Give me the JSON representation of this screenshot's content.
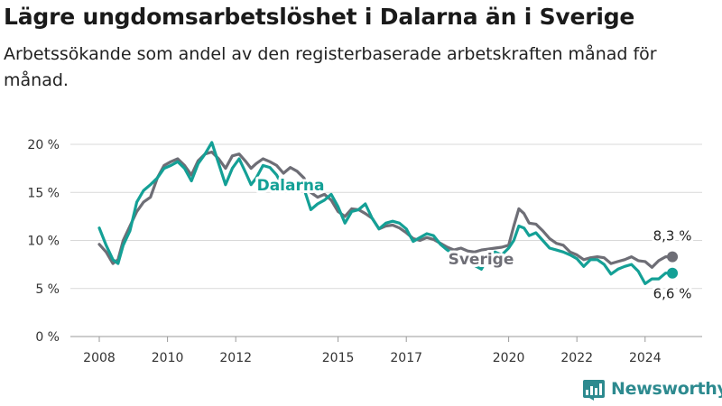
{
  "title": "Lägre ungdomsarbetslöshet i Dalarna än i Sverige",
  "subtitle": "Arbetssökande som andel av den registerbaserade arbetskraften månad för månad.",
  "brand": "Newsworthy",
  "colors": {
    "sverige": "#6e6e76",
    "dalarna": "#14a096",
    "grid": "#d9d9d9",
    "brand": "#2d8a8f"
  },
  "chart_data": {
    "type": "line",
    "title": "Lägre ungdomsarbetslöshet i Dalarna än i Sverige",
    "subtitle": "Arbetssökande som andel av den registerbaserade arbetskraften månad för månad.",
    "xlabel": "",
    "ylabel": "",
    "ylim": [
      0,
      20
    ],
    "xlim": [
      2008.0,
      2025.1
    ],
    "y_ticks": [
      0,
      5,
      10,
      15,
      20
    ],
    "y_tick_labels": [
      "0 %",
      "5 %",
      "10 %",
      "15 %",
      "20 %"
    ],
    "x_ticks": [
      2008,
      2010,
      2012,
      2015,
      2017,
      2020,
      2022,
      2024
    ],
    "x_tick_labels": [
      "2008",
      "2010",
      "2012",
      "2015",
      "2017",
      "2020",
      "2022",
      "2024"
    ],
    "grid": true,
    "legend": "inline labels",
    "series": [
      {
        "name": "Sverige",
        "end_label": "8,3 %",
        "points": [
          [
            2008.0,
            9.6
          ],
          [
            2008.2,
            8.8
          ],
          [
            2008.4,
            7.6
          ],
          [
            2008.55,
            8.0
          ],
          [
            2008.7,
            10.0
          ],
          [
            2008.9,
            11.5
          ],
          [
            2009.1,
            13.0
          ],
          [
            2009.3,
            14.0
          ],
          [
            2009.5,
            14.5
          ],
          [
            2009.7,
            16.5
          ],
          [
            2009.9,
            17.8
          ],
          [
            2010.1,
            18.2
          ],
          [
            2010.3,
            18.5
          ],
          [
            2010.5,
            17.8
          ],
          [
            2010.7,
            16.8
          ],
          [
            2010.9,
            18.3
          ],
          [
            2011.1,
            19.0
          ],
          [
            2011.3,
            19.2
          ],
          [
            2011.5,
            18.5
          ],
          [
            2011.7,
            17.5
          ],
          [
            2011.9,
            18.8
          ],
          [
            2012.1,
            19.0
          ],
          [
            2012.3,
            18.2
          ],
          [
            2012.45,
            17.5
          ],
          [
            2012.6,
            18.0
          ],
          [
            2012.8,
            18.5
          ],
          [
            2013.0,
            18.2
          ],
          [
            2013.2,
            17.8
          ],
          [
            2013.4,
            17.0
          ],
          [
            2013.6,
            17.6
          ],
          [
            2013.8,
            17.2
          ],
          [
            2014.0,
            16.5
          ],
          [
            2014.2,
            15.0
          ],
          [
            2014.4,
            14.5
          ],
          [
            2014.6,
            14.8
          ],
          [
            2014.8,
            14.2
          ],
          [
            2015.0,
            13.0
          ],
          [
            2015.2,
            12.5
          ],
          [
            2015.4,
            13.3
          ],
          [
            2015.6,
            13.2
          ],
          [
            2015.8,
            12.8
          ],
          [
            2016.0,
            12.3
          ],
          [
            2016.2,
            11.2
          ],
          [
            2016.4,
            11.5
          ],
          [
            2016.6,
            11.6
          ],
          [
            2016.8,
            11.3
          ],
          [
            2017.0,
            10.8
          ],
          [
            2017.2,
            10.2
          ],
          [
            2017.4,
            10.0
          ],
          [
            2017.6,
            10.3
          ],
          [
            2017.8,
            10.1
          ],
          [
            2018.0,
            9.7
          ],
          [
            2018.2,
            9.3
          ],
          [
            2018.4,
            9.0
          ],
          [
            2018.6,
            9.2
          ],
          [
            2018.8,
            8.9
          ],
          [
            2019.0,
            8.8
          ],
          [
            2019.2,
            9.0
          ],
          [
            2019.4,
            9.1
          ],
          [
            2019.6,
            9.2
          ],
          [
            2019.8,
            9.3
          ],
          [
            2020.0,
            9.5
          ],
          [
            2020.15,
            11.5
          ],
          [
            2020.3,
            13.3
          ],
          [
            2020.45,
            12.8
          ],
          [
            2020.6,
            11.8
          ],
          [
            2020.8,
            11.7
          ],
          [
            2021.0,
            11.0
          ],
          [
            2021.2,
            10.2
          ],
          [
            2021.4,
            9.7
          ],
          [
            2021.6,
            9.5
          ],
          [
            2021.8,
            8.8
          ],
          [
            2022.0,
            8.5
          ],
          [
            2022.2,
            8.0
          ],
          [
            2022.4,
            8.2
          ],
          [
            2022.6,
            8.3
          ],
          [
            2022.8,
            8.2
          ],
          [
            2023.0,
            7.6
          ],
          [
            2023.2,
            7.8
          ],
          [
            2023.4,
            8.0
          ],
          [
            2023.6,
            8.3
          ],
          [
            2023.8,
            7.9
          ],
          [
            2024.0,
            7.8
          ],
          [
            2024.2,
            7.2
          ],
          [
            2024.4,
            7.9
          ],
          [
            2024.6,
            8.3
          ],
          [
            2024.8,
            8.3
          ]
        ]
      },
      {
        "name": "Dalarna",
        "end_label": "6,6 %",
        "points": [
          [
            2008.0,
            11.3
          ],
          [
            2008.2,
            9.5
          ],
          [
            2008.4,
            8.0
          ],
          [
            2008.55,
            7.6
          ],
          [
            2008.7,
            9.5
          ],
          [
            2008.9,
            11.0
          ],
          [
            2009.1,
            14.0
          ],
          [
            2009.3,
            15.2
          ],
          [
            2009.5,
            15.8
          ],
          [
            2009.7,
            16.5
          ],
          [
            2009.9,
            17.5
          ],
          [
            2010.1,
            17.8
          ],
          [
            2010.3,
            18.2
          ],
          [
            2010.5,
            17.5
          ],
          [
            2010.7,
            16.2
          ],
          [
            2010.9,
            18.0
          ],
          [
            2011.1,
            19.0
          ],
          [
            2011.3,
            20.2
          ],
          [
            2011.5,
            18.0
          ],
          [
            2011.7,
            15.8
          ],
          [
            2011.9,
            17.5
          ],
          [
            2012.1,
            18.5
          ],
          [
            2012.3,
            17.0
          ],
          [
            2012.45,
            15.8
          ],
          [
            2012.6,
            16.5
          ],
          [
            2012.8,
            17.8
          ],
          [
            2013.0,
            17.6
          ],
          [
            2013.2,
            16.8
          ],
          [
            2013.4,
            15.5
          ],
          [
            2013.6,
            15.8
          ],
          [
            2013.8,
            15.5
          ],
          [
            2014.0,
            15.4
          ],
          [
            2014.2,
            13.2
          ],
          [
            2014.4,
            13.8
          ],
          [
            2014.6,
            14.2
          ],
          [
            2014.8,
            14.8
          ],
          [
            2015.0,
            13.5
          ],
          [
            2015.2,
            11.8
          ],
          [
            2015.4,
            13.0
          ],
          [
            2015.6,
            13.2
          ],
          [
            2015.8,
            13.8
          ],
          [
            2016.0,
            12.3
          ],
          [
            2016.2,
            11.2
          ],
          [
            2016.4,
            11.8
          ],
          [
            2016.6,
            12.0
          ],
          [
            2016.8,
            11.8
          ],
          [
            2017.0,
            11.2
          ],
          [
            2017.2,
            9.9
          ],
          [
            2017.4,
            10.3
          ],
          [
            2017.6,
            10.7
          ],
          [
            2017.8,
            10.5
          ],
          [
            2018.0,
            9.6
          ],
          [
            2018.2,
            9.0
          ],
          [
            2018.4,
            8.5
          ],
          [
            2018.6,
            8.0
          ],
          [
            2018.8,
            7.8
          ],
          [
            2019.0,
            7.4
          ],
          [
            2019.2,
            7.0
          ],
          [
            2019.4,
            8.3
          ],
          [
            2019.6,
            8.8
          ],
          [
            2019.8,
            8.5
          ],
          [
            2020.0,
            9.2
          ],
          [
            2020.15,
            10.0
          ],
          [
            2020.3,
            11.5
          ],
          [
            2020.45,
            11.3
          ],
          [
            2020.6,
            10.5
          ],
          [
            2020.8,
            10.8
          ],
          [
            2021.0,
            10.0
          ],
          [
            2021.2,
            9.2
          ],
          [
            2021.4,
            9.0
          ],
          [
            2021.6,
            8.8
          ],
          [
            2021.8,
            8.5
          ],
          [
            2022.0,
            8.1
          ],
          [
            2022.2,
            7.3
          ],
          [
            2022.4,
            8.0
          ],
          [
            2022.6,
            8.0
          ],
          [
            2022.8,
            7.5
          ],
          [
            2023.0,
            6.5
          ],
          [
            2023.2,
            7.0
          ],
          [
            2023.4,
            7.3
          ],
          [
            2023.6,
            7.5
          ],
          [
            2023.8,
            6.8
          ],
          [
            2024.0,
            5.5
          ],
          [
            2024.2,
            6.0
          ],
          [
            2024.4,
            6.0
          ],
          [
            2024.6,
            6.6
          ],
          [
            2024.8,
            6.6
          ]
        ]
      }
    ]
  }
}
